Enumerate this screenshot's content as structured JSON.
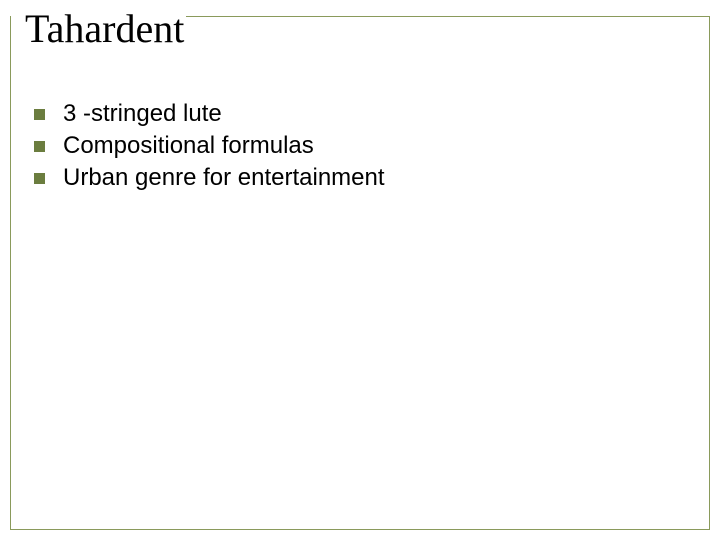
{
  "slide": {
    "title": "Tahardent",
    "title_font": "Times New Roman",
    "title_fontsize": 40,
    "title_color": "#000000",
    "frame_border_color": "#8a9a5b",
    "bullet_color": "#6b7d3f",
    "bullet_size": 11,
    "body_font": "Arial",
    "body_fontsize": 24,
    "body_color": "#000000",
    "background_color": "#ffffff",
    "items": [
      {
        "text": "3 -stringed lute"
      },
      {
        "text": "Compositional formulas"
      },
      {
        "text": "Urban genre for entertainment"
      }
    ]
  }
}
